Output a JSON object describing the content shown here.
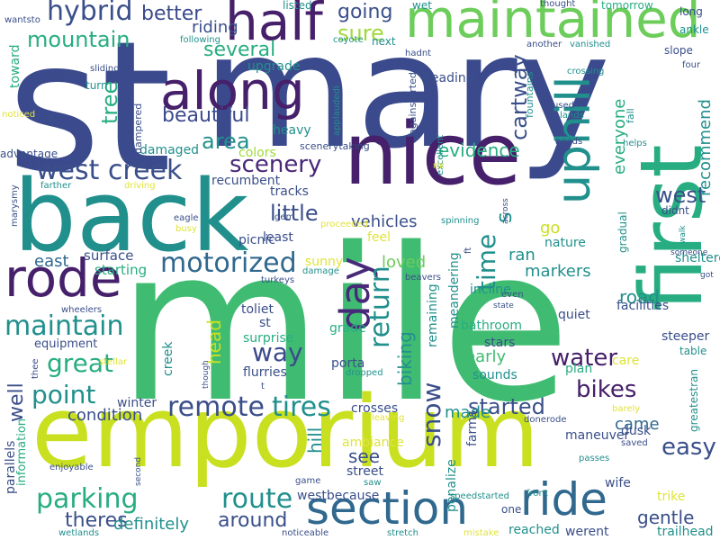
{
  "palette": {
    "navy": "#3b4a8c",
    "dark_purple": "#46206a",
    "purple": "#482878",
    "indigo": "#3a4f8a",
    "blue": "#30688e",
    "teal": "#21908d",
    "sea_green": "#27ad81",
    "green": "#40bc72",
    "light_green": "#6ccd5a",
    "lime": "#a0da39",
    "yellow_green": "#c8e020",
    "yellow": "#e0e33a"
  },
  "words": [
    {
      "id": "st",
      "text": "st",
      "color": "navy"
    },
    {
      "id": "mary",
      "text": "mary",
      "color": "navy"
    },
    {
      "id": "mile",
      "text": "mile",
      "color": "green"
    },
    {
      "id": "emporium",
      "text": "emporium",
      "color": "yellow_green"
    },
    {
      "id": "back",
      "text": "back",
      "color": "teal"
    },
    {
      "id": "first",
      "text": "first",
      "color": "sea_green"
    },
    {
      "id": "nice",
      "text": "nice",
      "color": "dark_purple"
    },
    {
      "id": "maintained",
      "text": "maintained",
      "color": "light_green"
    },
    {
      "id": "half",
      "text": "half",
      "color": "dark_purple"
    },
    {
      "id": "along",
      "text": "along",
      "color": "dark_purple"
    },
    {
      "id": "uphill",
      "text": "uphill",
      "color": "teal"
    },
    {
      "id": "rode",
      "text": "rode",
      "color": "dark_purple"
    },
    {
      "id": "day",
      "text": "day",
      "color": "purple"
    },
    {
      "id": "section",
      "text": "section",
      "color": "blue"
    },
    {
      "id": "ride",
      "text": "ride",
      "color": "blue"
    },
    {
      "id": "hybrid",
      "text": "hybrid",
      "color": "indigo"
    },
    {
      "id": "west-creek",
      "text": "west creek",
      "color": "indigo"
    },
    {
      "id": "motorized",
      "text": "motorized",
      "color": "blue"
    },
    {
      "id": "maintain",
      "text": "maintain",
      "color": "teal"
    },
    {
      "id": "remote",
      "text": "remote",
      "color": "indigo"
    },
    {
      "id": "tires",
      "text": "tires",
      "color": "teal"
    },
    {
      "id": "return",
      "text": "return",
      "color": "teal"
    },
    {
      "id": "parking",
      "text": "parking",
      "color": "sea_green"
    },
    {
      "id": "route",
      "text": "route",
      "color": "teal"
    },
    {
      "id": "scenery",
      "text": "scenery",
      "color": "purple"
    },
    {
      "id": "beautiful",
      "text": "beautiful",
      "color": "navy"
    },
    {
      "id": "area",
      "text": "area",
      "color": "teal"
    },
    {
      "id": "great",
      "text": "great",
      "color": "sea_green"
    },
    {
      "id": "point",
      "text": "point",
      "color": "teal"
    },
    {
      "id": "way",
      "text": "way",
      "color": "navy"
    },
    {
      "id": "snow",
      "text": "snow",
      "color": "indigo"
    },
    {
      "id": "started",
      "text": "started",
      "color": "indigo"
    },
    {
      "id": "bikes",
      "text": "bikes",
      "color": "dark_purple"
    },
    {
      "id": "water",
      "text": "water",
      "color": "dark_purple"
    },
    {
      "id": "time",
      "text": "time",
      "color": "teal"
    },
    {
      "id": "easy",
      "text": "easy",
      "color": "indigo"
    },
    {
      "id": "mountain",
      "text": "mountain",
      "color": "sea_green"
    },
    {
      "id": "better",
      "text": "better",
      "color": "navy"
    },
    {
      "id": "going",
      "text": "going",
      "color": "indigo"
    },
    {
      "id": "sure",
      "text": "sure",
      "color": "lime"
    },
    {
      "id": "several",
      "text": "several",
      "color": "sea_green"
    },
    {
      "id": "tree",
      "text": "tree",
      "color": "sea_green"
    },
    {
      "id": "cartway",
      "text": "cartway",
      "color": "indigo"
    },
    {
      "id": "west",
      "text": "west",
      "color": "indigo"
    },
    {
      "id": "little",
      "text": "little",
      "color": "indigo"
    },
    {
      "id": "theres",
      "text": "theres",
      "color": "indigo"
    },
    {
      "id": "around",
      "text": "around",
      "color": "indigo"
    },
    {
      "id": "gentle",
      "text": "gentle",
      "color": "indigo"
    },
    {
      "id": "s",
      "text": "s",
      "color": "teal"
    },
    {
      "id": "well",
      "text": "well",
      "color": "indigo"
    },
    {
      "id": "condition",
      "text": "condition",
      "color": "indigo"
    },
    {
      "id": "definitely",
      "text": "definitely",
      "color": "teal"
    },
    {
      "id": "biking",
      "text": "biking",
      "color": "teal"
    },
    {
      "id": "road",
      "text": "road",
      "color": "teal"
    },
    {
      "id": "head",
      "text": "head",
      "color": "yellow_green"
    },
    {
      "id": "loved",
      "text": "loved",
      "color": "light_green"
    },
    {
      "id": "evidence",
      "text": "evidence",
      "color": "sea_green"
    },
    {
      "id": "riding",
      "text": "riding",
      "color": "indigo"
    },
    {
      "id": "vehicles",
      "text": "vehicles",
      "color": "indigo"
    },
    {
      "id": "go",
      "text": "go",
      "color": "yellow_green"
    },
    {
      "id": "ran",
      "text": "ran",
      "color": "teal"
    },
    {
      "id": "markers",
      "text": "markers",
      "color": "teal"
    },
    {
      "id": "made",
      "text": "made",
      "color": "teal"
    },
    {
      "id": "early",
      "text": "early",
      "color": "green"
    },
    {
      "id": "see",
      "text": "see",
      "color": "indigo"
    },
    {
      "id": "came",
      "text": "came",
      "color": "blue"
    },
    {
      "id": "recommend",
      "text": "recommend",
      "color": "teal"
    },
    {
      "id": "everyone",
      "text": "everyone",
      "color": "sea_green"
    },
    {
      "id": "hill",
      "text": "hill",
      "color": "teal"
    },
    {
      "id": "east",
      "text": "east",
      "color": "blue"
    },
    {
      "id": "surface",
      "text": "surface",
      "color": "indigo"
    },
    {
      "id": "starting",
      "text": "starting",
      "color": "sea_green"
    },
    {
      "id": "upgrade",
      "text": "upgrade",
      "color": "teal"
    },
    {
      "id": "heavy",
      "text": "heavy",
      "color": "teal"
    },
    {
      "id": "damaged",
      "text": "damaged",
      "color": "teal"
    },
    {
      "id": "colors",
      "text": "colors",
      "color": "lime"
    },
    {
      "id": "picnic",
      "text": "picnic",
      "color": "indigo"
    },
    {
      "id": "least",
      "text": "least",
      "color": "indigo"
    },
    {
      "id": "tracks",
      "text": "tracks",
      "color": "indigo"
    },
    {
      "id": "recumbent",
      "text": "recumbent",
      "color": "indigo"
    },
    {
      "id": "sunny",
      "text": "sunny",
      "color": "yellow"
    },
    {
      "id": "feel",
      "text": "feel",
      "color": "yellow"
    },
    {
      "id": "nature",
      "text": "nature",
      "color": "teal"
    },
    {
      "id": "incline",
      "text": "incline",
      "color": "teal"
    },
    {
      "id": "toliet",
      "text": "toliet",
      "color": "indigo"
    },
    {
      "id": "st-small",
      "text": "st",
      "color": "indigo"
    },
    {
      "id": "surprise",
      "text": "surprise",
      "color": "sea_green"
    },
    {
      "id": "grade",
      "text": "grade",
      "color": "sea_green"
    },
    {
      "id": "bathroom",
      "text": "bathroom",
      "color": "sea_green"
    },
    {
      "id": "stars",
      "text": "stars",
      "color": "indigo"
    },
    {
      "id": "sounds",
      "text": "sounds",
      "color": "teal"
    },
    {
      "id": "plan",
      "text": "plan",
      "color": "sea_green"
    },
    {
      "id": "quiet",
      "text": "quiet",
      "color": "indigo"
    },
    {
      "id": "facilities",
      "text": "facilities",
      "color": "indigo"
    },
    {
      "id": "steeper",
      "text": "steeper",
      "color": "indigo"
    },
    {
      "id": "table",
      "text": "table",
      "color": "teal"
    },
    {
      "id": "sheltered",
      "text": "sheltered",
      "color": "teal"
    },
    {
      "id": "care",
      "text": "care",
      "color": "yellow"
    },
    {
      "id": "porta",
      "text": "porta",
      "color": "indigo"
    },
    {
      "id": "flurries",
      "text": "flurries",
      "color": "indigo"
    },
    {
      "id": "winter",
      "text": "winter",
      "color": "indigo"
    },
    {
      "id": "creek",
      "text": "creek",
      "color": "teal"
    },
    {
      "id": "crosses",
      "text": "crosses",
      "color": "indigo"
    },
    {
      "id": "remaining",
      "text": "remaining",
      "color": "teal"
    },
    {
      "id": "meandering",
      "text": "meandering",
      "color": "teal"
    },
    {
      "id": "penalize",
      "text": "penalize",
      "color": "teal"
    },
    {
      "id": "maneuver",
      "text": "maneuver",
      "color": "indigo"
    },
    {
      "id": "dusk",
      "text": "dusk",
      "color": "indigo"
    },
    {
      "id": "farms",
      "text": "farms",
      "color": "indigo"
    },
    {
      "id": "street",
      "text": "street",
      "color": "indigo"
    },
    {
      "id": "ambiance",
      "text": "ambiance",
      "color": "yellow"
    },
    {
      "id": "wife",
      "text": "wife",
      "color": "indigo"
    },
    {
      "id": "trike",
      "text": "trike",
      "color": "yellow"
    },
    {
      "id": "trailhead",
      "text": "trailhead",
      "color": "teal"
    },
    {
      "id": "reached",
      "text": "reached",
      "color": "teal"
    },
    {
      "id": "werent",
      "text": "werent",
      "color": "indigo"
    },
    {
      "id": "westbecause",
      "text": "westbecause",
      "color": "indigo"
    },
    {
      "id": "parallels",
      "text": "parallels",
      "color": "indigo"
    },
    {
      "id": "information",
      "text": "information",
      "color": "sea_green"
    },
    {
      "id": "equipment",
      "text": "equipment",
      "color": "indigo"
    },
    {
      "id": "advantage",
      "text": "advantage",
      "color": "indigo"
    },
    {
      "id": "toward",
      "text": "toward",
      "color": "sea_green"
    },
    {
      "id": "turn",
      "text": "turn",
      "color": "teal"
    },
    {
      "id": "rd",
      "text": "rd",
      "color": "indigo"
    },
    {
      "id": "dampered",
      "text": "dampered",
      "color": "indigo"
    },
    {
      "id": "heading",
      "text": "heading",
      "color": "indigo"
    },
    {
      "id": "next",
      "text": "next",
      "color": "teal"
    },
    {
      "id": "listed",
      "text": "listed",
      "color": "teal"
    },
    {
      "id": "wet",
      "text": "wet",
      "color": "teal"
    },
    {
      "id": "tomorrow",
      "text": "tomorrow",
      "color": "sea_green"
    },
    {
      "id": "long",
      "text": "long",
      "color": "indigo"
    },
    {
      "id": "ankle",
      "text": "ankle",
      "color": "teal"
    },
    {
      "id": "slope",
      "text": "slope",
      "color": "indigo"
    },
    {
      "id": "gradual",
      "text": "gradual",
      "color": "teal"
    },
    {
      "id": "greatestran",
      "text": "greatestran",
      "color": "teal"
    },
    {
      "id": "fall",
      "text": "fall",
      "color": "teal"
    },
    {
      "id": "fountains",
      "text": "fountains",
      "color": "teal"
    },
    {
      "id": "rt",
      "text": "rt",
      "color": "indigo"
    },
    {
      "id": "againstarted",
      "text": "againstarted",
      "color": "indigo"
    },
    {
      "id": "scenerytaking",
      "text": "scenerytaking",
      "color": "indigo"
    },
    {
      "id": "didnt",
      "text": "didnt",
      "color": "indigo"
    },
    {
      "id": "sliding",
      "text": "sliding",
      "color": "indigo"
    },
    {
      "id": "unless",
      "text": "unless",
      "color": "indigo"
    },
    {
      "id": "wantsto",
      "text": "wantsto",
      "color": "indigo"
    },
    {
      "id": "following",
      "text": "following",
      "color": "teal"
    },
    {
      "id": "coyote",
      "text": "coyote",
      "color": "teal"
    },
    {
      "id": "hadnt",
      "text": "hadnt",
      "color": "indigo"
    },
    {
      "id": "applauded",
      "text": "applaudedi",
      "color": "teal"
    },
    {
      "id": "another",
      "text": "another",
      "color": "indigo"
    },
    {
      "id": "thought",
      "text": "thought",
      "color": "indigo"
    },
    {
      "id": "vanished",
      "text": "vanished",
      "color": "teal"
    },
    {
      "id": "crossing",
      "text": "crossing",
      "color": "teal"
    },
    {
      "id": "used",
      "text": "used",
      "color": "indigo"
    },
    {
      "id": "lands",
      "text": "lands",
      "color": "teal"
    },
    {
      "id": "four",
      "text": "four",
      "color": "indigo"
    },
    {
      "id": "needs",
      "text": "needs",
      "color": "indigo"
    },
    {
      "id": "helps",
      "text": "helps",
      "color": "teal"
    },
    {
      "id": "excellent",
      "text": "excellent",
      "color": "teal"
    },
    {
      "id": "mi",
      "text": "mi",
      "color": "yellow"
    },
    {
      "id": "noticed",
      "text": "noticed",
      "color": "yellow"
    },
    {
      "id": "farther",
      "text": "farther",
      "color": "teal"
    },
    {
      "id": "driving",
      "text": "driving",
      "color": "yellow"
    },
    {
      "id": "marysmy",
      "text": "marysmy",
      "color": "indigo"
    },
    {
      "id": "eagle",
      "text": "eagle",
      "color": "indigo"
    },
    {
      "id": "busy",
      "text": "busy",
      "color": "yellow"
    },
    {
      "id": "gem",
      "text": "gem",
      "color": "indigo"
    },
    {
      "id": "proceeded",
      "text": "proceeded",
      "color": "yellow"
    },
    {
      "id": "spinning",
      "text": "spinning",
      "color": "teal"
    },
    {
      "id": "across",
      "text": "across",
      "color": "indigo"
    },
    {
      "id": "walk",
      "text": "walk",
      "color": "teal"
    },
    {
      "id": "someone",
      "text": "someone",
      "color": "indigo"
    },
    {
      "id": "got",
      "text": "got",
      "color": "indigo"
    },
    {
      "id": "ft",
      "text": "ft",
      "color": "indigo"
    },
    {
      "id": "turkeys",
      "text": "turkeys",
      "color": "indigo"
    },
    {
      "id": "beavers",
      "text": "beavers",
      "color": "indigo"
    },
    {
      "id": "damage",
      "text": "damage",
      "color": "teal"
    },
    {
      "id": "even",
      "text": "even",
      "color": "indigo"
    },
    {
      "id": "state",
      "text": "state",
      "color": "indigo"
    },
    {
      "id": "wheelers",
      "text": "wheelers",
      "color": "indigo"
    },
    {
      "id": "stellar",
      "text": "stellar",
      "color": "yellow"
    },
    {
      "id": "thee",
      "text": "thee",
      "color": "indigo"
    },
    {
      "id": "though",
      "text": "though",
      "color": "indigo"
    },
    {
      "id": "dropped",
      "text": "dropped",
      "color": "teal"
    },
    {
      "id": "t",
      "text": "t",
      "color": "indigo"
    },
    {
      "id": "leaving",
      "text": "leaving",
      "color": "yellow"
    },
    {
      "id": "donerode",
      "text": "donerode",
      "color": "indigo"
    },
    {
      "id": "barely",
      "text": "barely",
      "color": "yellow"
    },
    {
      "id": "saved",
      "text": "saved",
      "color": "indigo"
    },
    {
      "id": "passes",
      "text": "passes",
      "color": "teal"
    },
    {
      "id": "enjoyable",
      "text": "enjoyable",
      "color": "indigo"
    },
    {
      "id": "second",
      "text": "second",
      "color": "indigo"
    },
    {
      "id": "game",
      "text": "game",
      "color": "indigo"
    },
    {
      "id": "saw",
      "text": "saw",
      "color": "teal"
    },
    {
      "id": "speedstarted",
      "text": "speedstarted",
      "color": "teal"
    },
    {
      "id": "front",
      "text": "front",
      "color": "teal"
    },
    {
      "id": "one",
      "text": "one",
      "color": "indigo"
    },
    {
      "id": "wetlands",
      "text": "wetlands",
      "color": "teal"
    },
    {
      "id": "noticeable",
      "text": "noticeable",
      "color": "indigo"
    },
    {
      "id": "stretch",
      "text": "stretch",
      "color": "teal"
    },
    {
      "id": "mistake",
      "text": "mistake",
      "color": "yellow"
    }
  ]
}
